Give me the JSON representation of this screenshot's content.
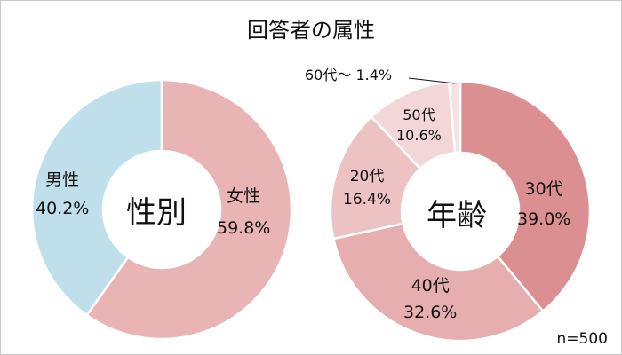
{
  "title": "回答者の属性",
  "note": "n=500",
  "colors": {
    "male": "#bfe0ea",
    "female": "#e8b4b4",
    "age30": "#dc8f90",
    "age40": "#e6aeae",
    "age20": "#ecc2c2",
    "age50": "#f3d6d7",
    "age60": "#f6e2e3"
  },
  "gender": {
    "center": "性別",
    "female": {
      "name": "女性",
      "pct": "59.8%"
    },
    "male": {
      "name": "男性",
      "pct": "40.2%"
    }
  },
  "age": {
    "center": "年齢",
    "a30": {
      "name": "30代",
      "pct": "39.0%"
    },
    "a40": {
      "name": "40代",
      "pct": "32.6%"
    },
    "a20": {
      "name": "20代",
      "pct": "16.4%"
    },
    "a50": {
      "name": "50代",
      "pct": "10.6%"
    },
    "a60": {
      "label": "60代～ 1.4%"
    }
  },
  "chart_data": [
    {
      "type": "pie",
      "title": "性別",
      "categories": [
        "女性",
        "男性"
      ],
      "values": [
        59.8,
        40.2
      ],
      "unit": "%",
      "donut": true
    },
    {
      "type": "pie",
      "title": "年齢",
      "categories": [
        "30代",
        "40代",
        "20代",
        "50代",
        "60代～"
      ],
      "values": [
        39.0,
        32.6,
        16.4,
        10.6,
        1.4
      ],
      "unit": "%",
      "donut": true
    }
  ]
}
